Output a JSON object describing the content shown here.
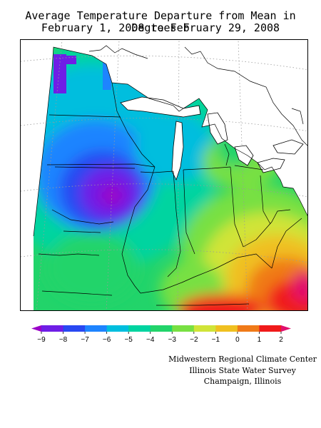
{
  "title": {
    "line1": "Average Temperature Departure from Mean in Degrees F",
    "line2": "February 1, 2008 to February 29, 2008"
  },
  "legend": {
    "ticks": [
      "-9",
      "-8",
      "-7",
      "-6",
      "-5",
      "-4",
      "-3",
      "-2",
      "-1",
      "0",
      "1",
      "2"
    ],
    "colors": [
      "#9a00c8",
      "#6f1ee6",
      "#2848f2",
      "#1e84ff",
      "#00bede",
      "#00d4a0",
      "#22d46a",
      "#78e042",
      "#d0e438",
      "#f0c020",
      "#f07a18",
      "#f01a1a",
      "#e0106e"
    ]
  },
  "credits": {
    "line1": "Midwestern Regional Climate Center",
    "line2": "Illinois State Water Survey",
    "line3": "Champaign, Illinois"
  }
}
